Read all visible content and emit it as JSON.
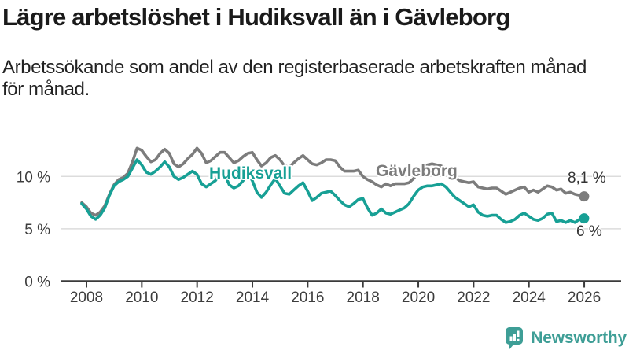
{
  "header": {
    "title": "Lägre arbetslöshet i Hudiksvall än i Gävleborg",
    "subtitle_lines": [
      "Arbetssökande som andel av den registerbaserade arbetskraften månad",
      "för månad."
    ]
  },
  "chart_data": {
    "type": "line",
    "title": "Lägre arbetslöshet i Hudiksvall än i Gävleborg",
    "subtitle": "Arbetssökande som andel av den registerbaserade arbetskraften månad för månad.",
    "unit": "% av registerbaserad arbetskraft",
    "grid": "horizontal",
    "legend_position": "inline-labels",
    "x_start": 2008,
    "x_step_years": 0.1666667,
    "x_range": [
      2008,
      2026.2
    ],
    "ylim": [
      0,
      14
    ],
    "x_ticks": [
      2008,
      2010,
      2012,
      2014,
      2016,
      2018,
      2020,
      2022,
      2024,
      2026
    ],
    "y_ticks": [
      {
        "value": 0,
        "label": "0 %"
      },
      {
        "value": 5,
        "label": "5 %"
      },
      {
        "value": 10,
        "label": "10 %"
      }
    ],
    "series": [
      {
        "id": "gavleborg",
        "name": "Gävleborg",
        "color": "#7c7c7c",
        "end_label": "8,1 %",
        "last_value": 8.1,
        "values": [
          7.5,
          7.1,
          6.5,
          6.3,
          6.6,
          7.2,
          8.3,
          9.2,
          9.7,
          9.9,
          10.3,
          11.4,
          12.7,
          12.5,
          11.9,
          11.4,
          11.6,
          12.2,
          12.6,
          12.2,
          11.2,
          10.9,
          11.2,
          11.7,
          12.1,
          12.7,
          12.2,
          11.3,
          11.5,
          11.9,
          12.3,
          12.3,
          11.8,
          11.3,
          11.5,
          11.9,
          12.2,
          12.3,
          11.6,
          11.0,
          11.3,
          11.8,
          12.0,
          11.6,
          11.0,
          10.9,
          11.3,
          11.7,
          12.0,
          11.6,
          11.2,
          11.1,
          11.3,
          11.6,
          11.6,
          11.5,
          10.9,
          10.5,
          10.5,
          10.5,
          10.6,
          10.0,
          9.7,
          9.5,
          9.2,
          9.0,
          9.3,
          9.1,
          9.3,
          9.3,
          9.3,
          9.4,
          9.8,
          10.4,
          10.9,
          11.1,
          11.2,
          11.1,
          11.0,
          10.8,
          10.3,
          9.9,
          9.6,
          9.5,
          9.4,
          9.5,
          9.0,
          8.9,
          8.8,
          8.9,
          8.9,
          8.6,
          8.3,
          8.5,
          8.7,
          8.9,
          9.0,
          8.5,
          8.7,
          8.5,
          8.8,
          9.1,
          9.0,
          8.7,
          8.8,
          8.4,
          8.5,
          8.3,
          8.2,
          8.1
        ]
      },
      {
        "id": "hudiksvall",
        "name": "Hudiksvall",
        "color": "#17a095",
        "end_label": "6 %",
        "last_value": 6.0,
        "values": [
          7.4,
          6.9,
          6.2,
          5.9,
          6.3,
          7.0,
          8.2,
          9.1,
          9.5,
          9.7,
          10.0,
          10.8,
          11.6,
          11.1,
          10.4,
          10.2,
          10.5,
          10.9,
          11.4,
          10.9,
          10.0,
          9.7,
          9.9,
          10.2,
          10.5,
          10.2,
          9.3,
          9.0,
          9.3,
          9.6,
          10.3,
          10.2,
          9.2,
          8.9,
          9.1,
          9.6,
          10.3,
          9.6,
          8.5,
          8.0,
          8.5,
          9.2,
          9.8,
          9.1,
          8.4,
          8.3,
          8.7,
          9.1,
          9.4,
          8.6,
          7.7,
          8.0,
          8.4,
          8.5,
          8.6,
          8.2,
          7.7,
          7.3,
          7.1,
          7.4,
          7.8,
          7.9,
          7.0,
          6.3,
          6.5,
          6.9,
          6.5,
          6.4,
          6.6,
          6.8,
          7.0,
          7.4,
          8.1,
          8.7,
          9.0,
          9.1,
          9.1,
          9.2,
          9.3,
          9.0,
          8.5,
          8.0,
          7.7,
          7.4,
          7.1,
          7.3,
          6.6,
          6.3,
          6.2,
          6.3,
          6.3,
          5.9,
          5.6,
          5.7,
          5.9,
          6.3,
          6.5,
          6.2,
          5.9,
          5.8,
          6.0,
          6.4,
          6.5,
          5.7,
          5.8,
          5.6,
          5.8,
          5.6,
          5.9,
          6.0
        ]
      }
    ]
  },
  "footer": {
    "brand": "Newsworthy"
  },
  "colors": {
    "line_hudiksvall": "#17a095",
    "line_gavleborg": "#7c7c7c",
    "grid": "#dcdcdc",
    "axis": "#3b3b3b",
    "axis_text": "#3c3c3c",
    "title_text": "#1a1a1a",
    "end_label_text": "#333333",
    "brand": "#3e9e96"
  }
}
